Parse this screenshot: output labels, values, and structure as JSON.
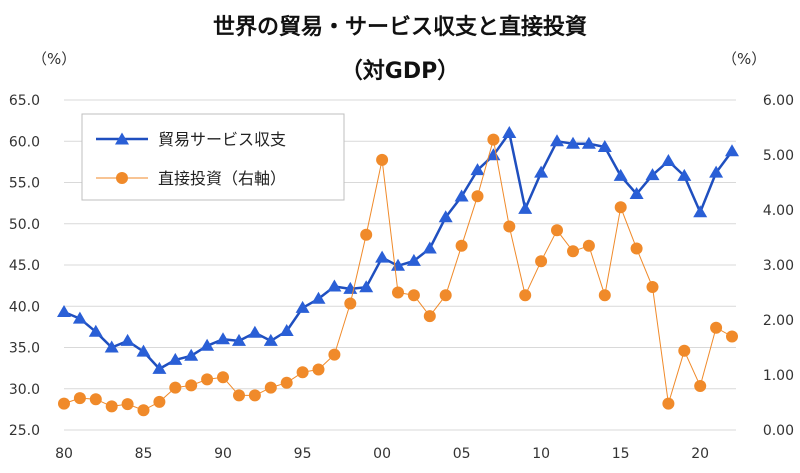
{
  "chart_data": {
    "type": "line",
    "title": "世界の貿易・サービス収支と直接投資",
    "subtitle": "（対GDP）",
    "y_left_unit": "（%）",
    "y_right_unit": "（%）",
    "ylim_left": [
      25,
      65
    ],
    "ylim_right": [
      0,
      6
    ],
    "yticks_left": [
      "65.0",
      "60.0",
      "55.0",
      "50.0",
      "45.0",
      "40.0",
      "35.0",
      "30.0",
      "25.0"
    ],
    "yticks_right": [
      "6.00",
      "5.00",
      "4.00",
      "3.00",
      "2.00",
      "1.00",
      "0.00"
    ],
    "xlim": [
      1980,
      2022
    ],
    "xticks": [
      {
        "year": 1980,
        "label": "80"
      },
      {
        "year": 1985,
        "label": "85"
      },
      {
        "year": 1990,
        "label": "90"
      },
      {
        "year": 1995,
        "label": "95"
      },
      {
        "year": 2000,
        "label": "00"
      },
      {
        "year": 2005,
        "label": "05"
      },
      {
        "year": 2010,
        "label": "10"
      },
      {
        "year": 2015,
        "label": "15"
      },
      {
        "year": 2020,
        "label": "20"
      }
    ],
    "x": [
      1980,
      1981,
      1982,
      1983,
      1984,
      1985,
      1986,
      1987,
      1988,
      1989,
      1990,
      1991,
      1992,
      1993,
      1994,
      1995,
      1996,
      1997,
      1998,
      1999,
      2000,
      2001,
      2002,
      2003,
      2004,
      2005,
      2006,
      2007,
      2008,
      2009,
      2010,
      2011,
      2012,
      2013,
      2014,
      2015,
      2016,
      2017,
      2018,
      2019,
      2020,
      2021,
      2022
    ],
    "series": [
      {
        "name": "貿易サービス収支",
        "axis": "left",
        "color": "#1f4fbf",
        "marker": "triangle",
        "values": [
          39.3,
          38.5,
          36.9,
          35.0,
          35.8,
          34.5,
          32.4,
          33.5,
          34.0,
          35.2,
          36.0,
          35.8,
          36.8,
          35.8,
          37.0,
          39.8,
          40.9,
          42.4,
          42.1,
          42.3,
          45.9,
          44.9,
          45.5,
          47.0,
          50.8,
          53.3,
          56.5,
          58.3,
          61.0,
          51.8,
          56.2,
          60.0,
          59.7,
          59.7,
          59.3,
          55.8,
          53.6,
          55.9,
          57.6,
          55.8,
          51.4,
          56.2,
          58.8
        ]
      },
      {
        "name": "直接投資（右軸）",
        "axis": "right",
        "color": "#f08a2a",
        "marker": "circle",
        "values": [
          0.48,
          0.58,
          0.56,
          0.43,
          0.47,
          0.36,
          0.51,
          0.77,
          0.81,
          0.92,
          0.96,
          0.63,
          0.63,
          0.77,
          0.86,
          1.05,
          1.1,
          1.37,
          2.3,
          3.55,
          4.91,
          2.5,
          2.45,
          2.07,
          2.45,
          3.35,
          4.25,
          5.28,
          3.7,
          2.45,
          3.07,
          3.63,
          3.25,
          3.35,
          2.45,
          4.05,
          3.3,
          2.6,
          0.48,
          1.44,
          0.8,
          1.86,
          1.7
        ]
      }
    ],
    "legend_position": "top-left",
    "grid": true
  }
}
